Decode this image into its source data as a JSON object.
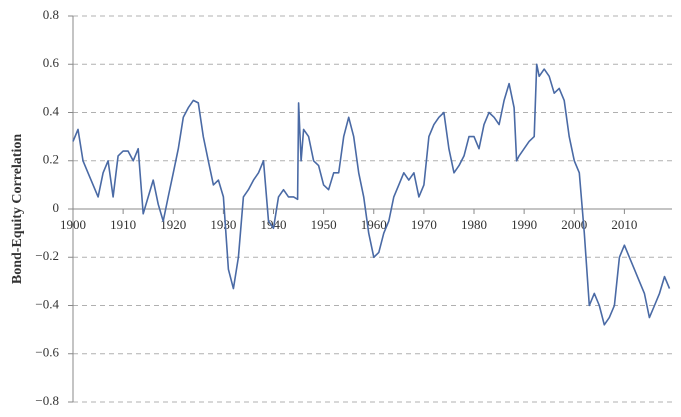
{
  "chart_data": {
    "type": "line",
    "y_label": "Bond-Equity Correlation",
    "x": [
      1900,
      1901,
      1902,
      1903,
      1904,
      1905,
      1906,
      1907,
      1908,
      1909,
      1910,
      1911,
      1912,
      1913,
      1914,
      1915,
      1916,
      1917,
      1918,
      1919,
      1920,
      1921,
      1922,
      1923,
      1924,
      1925,
      1926,
      1927,
      1928,
      1929,
      1930,
      1931,
      1932,
      1933,
      1934,
      1935,
      1936,
      1937,
      1938,
      1939,
      1940,
      1941,
      1942,
      1943,
      1944,
      1944.8,
      1945,
      1945.5,
      1946,
      1947,
      1948,
      1949,
      1950,
      1951,
      1952,
      1953,
      1954,
      1955,
      1956,
      1957,
      1958,
      1959,
      1960,
      1961,
      1962,
      1963,
      1964,
      1965,
      1966,
      1967,
      1968,
      1969,
      1970,
      1971,
      1972,
      1973,
      1974,
      1975,
      1976,
      1977,
      1978,
      1979,
      1980,
      1981,
      1982,
      1983,
      1984,
      1985,
      1986,
      1987,
      1988,
      1988.5,
      1989,
      1990,
      1991,
      1992,
      1992.5,
      1993,
      1994,
      1995,
      1996,
      1997,
      1998,
      1999,
      2000,
      2001,
      2002,
      2003,
      2004,
      2005,
      2006,
      2007,
      2008,
      2009,
      2010,
      2011,
      2012,
      2013,
      2014,
      2015,
      2016,
      2017,
      2018,
      2019
    ],
    "series": [
      {
        "name": "Bond-Equity Correlation",
        "color": "#4a6aa5",
        "values": [
          0.28,
          0.33,
          0.2,
          0.15,
          0.1,
          0.05,
          0.15,
          0.2,
          0.05,
          0.22,
          0.24,
          0.24,
          0.2,
          0.25,
          -0.02,
          0.05,
          0.12,
          0.02,
          -0.05,
          0.05,
          0.15,
          0.25,
          0.38,
          0.42,
          0.45,
          0.44,
          0.3,
          0.2,
          0.1,
          0.12,
          0.05,
          -0.25,
          -0.33,
          -0.2,
          0.05,
          0.08,
          0.12,
          0.15,
          0.2,
          -0.05,
          -0.08,
          0.05,
          0.08,
          0.05,
          0.05,
          0.04,
          0.44,
          0.2,
          0.33,
          0.3,
          0.2,
          0.18,
          0.1,
          0.08,
          0.15,
          0.15,
          0.3,
          0.38,
          0.3,
          0.15,
          0.05,
          -0.1,
          -0.2,
          -0.18,
          -0.1,
          -0.05,
          0.05,
          0.1,
          0.15,
          0.12,
          0.15,
          0.05,
          0.1,
          0.3,
          0.35,
          0.38,
          0.4,
          0.25,
          0.15,
          0.18,
          0.22,
          0.3,
          0.3,
          0.25,
          0.35,
          0.4,
          0.38,
          0.35,
          0.45,
          0.52,
          0.42,
          0.2,
          0.22,
          0.25,
          0.28,
          0.3,
          0.6,
          0.55,
          0.58,
          0.55,
          0.48,
          0.5,
          0.45,
          0.3,
          0.2,
          0.15,
          -0.1,
          -0.4,
          -0.35,
          -0.4,
          -0.48,
          -0.45,
          -0.4,
          -0.2,
          -0.15,
          -0.2,
          -0.25,
          -0.3,
          -0.35,
          -0.45,
          -0.4,
          -0.35,
          -0.28,
          -0.33
        ]
      }
    ],
    "xlim": [
      1900,
      2019.5
    ],
    "xticks": [
      1900,
      1910,
      1920,
      1930,
      1940,
      1950,
      1960,
      1970,
      1980,
      1990,
      2000,
      2010
    ],
    "ylim": [
      -0.8,
      0.8
    ],
    "yticks": [
      {
        "value": -0.8,
        "label": "−0.8"
      },
      {
        "value": -0.6,
        "label": "−0.6"
      },
      {
        "value": -0.4,
        "label": "−0.4"
      },
      {
        "value": -0.2,
        "label": "−0.2"
      },
      0,
      0.2,
      0.4,
      0.6,
      0.8
    ],
    "grid": true
  }
}
